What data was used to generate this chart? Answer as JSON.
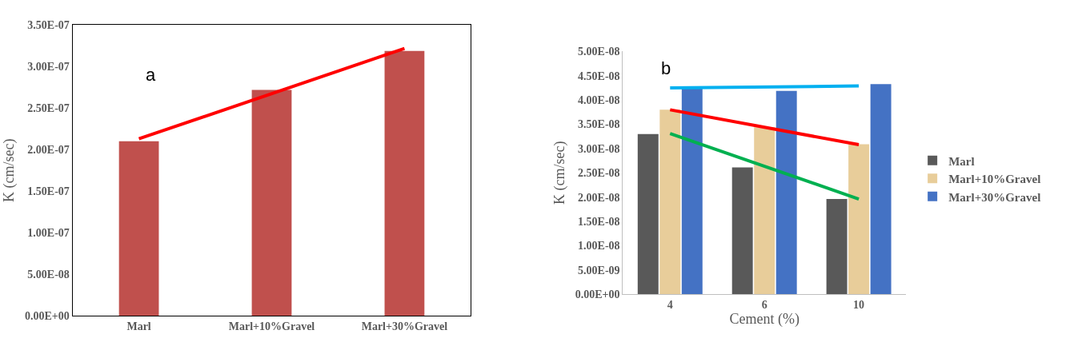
{
  "chart_data": [
    {
      "type": "bar",
      "annotations": [
        "a"
      ],
      "ylabel": "K (cm/sec)",
      "categories": [
        "Marl",
        "Marl+10%Gravel",
        "Marl+30%Gravel"
      ],
      "series": [
        {
          "color": "#c0504d",
          "values": [
            2.1e-07,
            2.72e-07,
            3.19e-07
          ]
        },
        {
          "type": "line",
          "color": "#ff0000",
          "x": [
            "Marl",
            "Marl+30%Gravel"
          ],
          "values": [
            2.13e-07,
            3.22e-07
          ]
        }
      ],
      "ylim": [
        0,
        3.5e-07
      ],
      "yticks": [
        {
          "value": 0,
          "label": "0.00E+00"
        },
        {
          "value": 5e-08,
          "label": "5.00E-08"
        },
        {
          "value": 1e-07,
          "label": "1.00E-07"
        },
        {
          "value": 1.5e-07,
          "label": "1.50E-07"
        },
        {
          "value": 2e-07,
          "label": "2.00E-07"
        },
        {
          "value": 2.5e-07,
          "label": "2.50E-07"
        },
        {
          "value": 3e-07,
          "label": "3.00E-07"
        },
        {
          "value": 3.5e-07,
          "label": "3.50E-07"
        }
      ],
      "grid": false,
      "legend": false
    },
    {
      "type": "bar",
      "annotations": [
        "b"
      ],
      "xlabel": "Cement (%)",
      "ylabel": "K (cm/sec)",
      "categories": [
        "4",
        "6",
        "10"
      ],
      "series": [
        {
          "name": "Marl",
          "color": "#595959",
          "values": [
            3.3e-08,
            2.61e-08,
            1.96e-08
          ]
        },
        {
          "name": "Marl+10%Gravel",
          "color": "#e8cd9a",
          "values": [
            3.8e-08,
            3.44e-08,
            3.09e-08
          ]
        },
        {
          "name": "Marl+30%Gravel",
          "color": "#4472c4",
          "values": [
            4.24e-08,
            4.19e-08,
            4.33e-08
          ]
        },
        {
          "type": "line",
          "color": "#00b0f0",
          "x": [
            "4",
            "10"
          ],
          "values": [
            4.25e-08,
            4.29e-08
          ]
        },
        {
          "type": "line",
          "color": "#ff0000",
          "x": [
            "4",
            "10"
          ],
          "values": [
            3.8e-08,
            3.08e-08
          ]
        },
        {
          "type": "line",
          "color": "#00b050",
          "x": [
            "4",
            "10"
          ],
          "values": [
            3.31e-08,
            1.96e-08
          ]
        }
      ],
      "ylim": [
        0,
        5e-08
      ],
      "yticks": [
        {
          "value": 0,
          "label": "0.00E+00"
        },
        {
          "value": 5e-09,
          "label": "5.00E-09"
        },
        {
          "value": 1e-08,
          "label": "1.00E-08"
        },
        {
          "value": 1.5e-08,
          "label": "1.50E-08"
        },
        {
          "value": 2e-08,
          "label": "2.00E-08"
        },
        {
          "value": 2.5e-08,
          "label": "2.50E-08"
        },
        {
          "value": 3e-08,
          "label": "3.00E-08"
        },
        {
          "value": 3.5e-08,
          "label": "3.50E-08"
        },
        {
          "value": 4e-08,
          "label": "4.00E-08"
        },
        {
          "value": 4.5e-08,
          "label": "4.50E-08"
        },
        {
          "value": 5e-08,
          "label": "5.00E-08"
        }
      ],
      "grid": false,
      "legend": "right"
    }
  ]
}
